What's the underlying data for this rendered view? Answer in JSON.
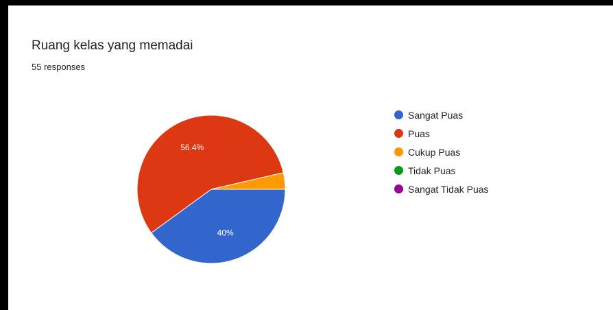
{
  "title": "Ruang kelas yang memadai",
  "responses_text": "55 responses",
  "chart_data": {
    "type": "pie",
    "title": "Ruang kelas yang memadai",
    "categories": [
      "Sangat Puas",
      "Puas",
      "Cukup Puas",
      "Tidak Puas",
      "Sangat Tidak Puas"
    ],
    "values": [
      40,
      56.4,
      3.6,
      0,
      0
    ],
    "slice_labels": [
      "40%",
      "56.4%",
      "",
      "",
      ""
    ],
    "colors": [
      "#3366cc",
      "#dc3912",
      "#ff9900",
      "#109618",
      "#990099"
    ],
    "legend_position": "right"
  }
}
